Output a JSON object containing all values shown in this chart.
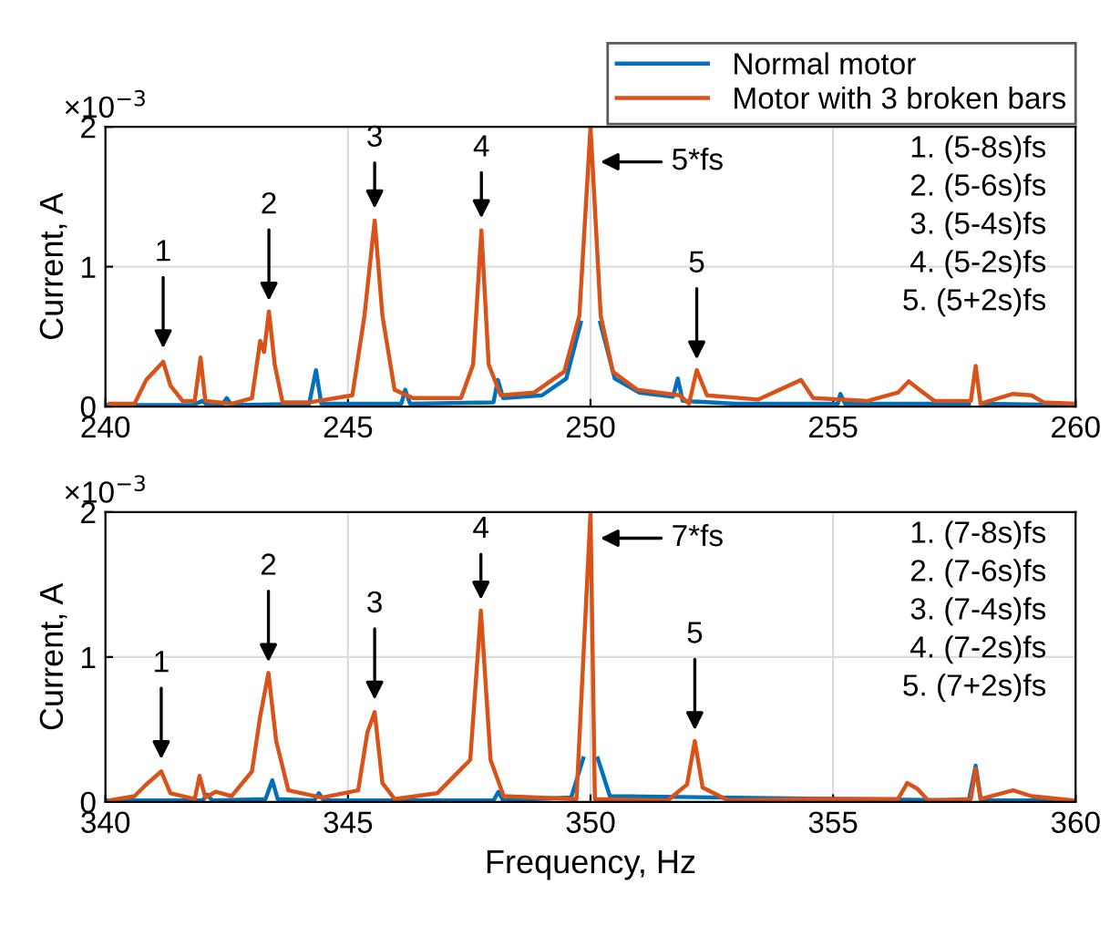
{
  "chart_data": [
    {
      "type": "line",
      "ylabel": "Current, A",
      "xlim": [
        240,
        260
      ],
      "xticks": [
        240,
        245,
        250,
        255,
        260
      ],
      "ylim": [
        0,
        2
      ],
      "yticks": [
        0,
        1,
        2
      ],
      "grid": true,
      "legend": "top right",
      "line_style": "solid",
      "series": [
        {
          "name": "Normal motor",
          "color": "#0072bd",
          "x": [
            240.0,
            241.8,
            242.0,
            242.1,
            242.4,
            242.5,
            242.6,
            244.2,
            244.34,
            244.45,
            246.1,
            246.18,
            246.28,
            248.0,
            248.09,
            248.2,
            249.0,
            249.5,
            249.8,
            250.0,
            250.2,
            250.5,
            251.0,
            251.7,
            251.8,
            251.9,
            253.0,
            255.1,
            255.15,
            255.25,
            257.8,
            257.94,
            258.05,
            260.0
          ],
          "values": [
            0.01,
            0.01,
            0.04,
            0.01,
            0.01,
            0.06,
            0.01,
            0.02,
            0.26,
            0.02,
            0.02,
            0.12,
            0.02,
            0.03,
            0.19,
            0.06,
            0.08,
            0.2,
            0.6,
            null,
            0.6,
            0.2,
            0.1,
            0.07,
            0.2,
            0.04,
            0.02,
            0.02,
            0.09,
            0.02,
            0.02,
            null,
            0.02,
            0.01
          ]
        },
        {
          "name": "Motor with 3 broken bars",
          "color": "#d95319",
          "x": [
            240.09,
            240.6,
            240.84,
            241.19,
            241.34,
            241.59,
            241.84,
            241.96,
            242.06,
            242.6,
            243.02,
            243.19,
            243.27,
            243.37,
            243.49,
            243.65,
            244.21,
            245.09,
            245.34,
            245.55,
            245.71,
            245.96,
            246.34,
            247.33,
            247.58,
            247.75,
            247.9,
            248.15,
            248.84,
            249.46,
            249.77,
            250.0,
            250.21,
            250.46,
            250.96,
            251.84,
            252.03,
            252.19,
            252.4,
            253.46,
            254.34,
            254.59,
            255.71,
            256.34,
            256.56,
            256.78,
            257.09,
            257.84,
            257.94,
            258.04,
            258.71,
            259.09,
            259.34,
            259.96
          ],
          "values": [
            0.02,
            0.02,
            0.19,
            0.32,
            0.15,
            0.04,
            0.04,
            0.35,
            0.04,
            0.02,
            0.06,
            0.47,
            0.39,
            0.68,
            0.3,
            0.03,
            0.03,
            0.08,
            0.65,
            1.33,
            0.65,
            0.12,
            0.06,
            0.06,
            0.3,
            1.26,
            0.3,
            0.08,
            0.1,
            0.25,
            0.65,
            2,
            0.65,
            0.25,
            0.12,
            0.08,
            0.02,
            0.26,
            0.08,
            0.05,
            0.19,
            0.06,
            0.04,
            0.1,
            0.18,
            0.12,
            0.04,
            0.04,
            0.29,
            0.02,
            0.09,
            0.08,
            0.03,
            0.02
          ]
        }
      ],
      "annotations": [
        "×10$^{−3}$",
        "1. (5-8s)fs\n2. (5-6s)fs\n3. (5-4s)fs\n4. (5-2s)fs\n5. (5+2s)fs",
        {
          "text": "1",
          "x": 241.19,
          "y": 0.38
        },
        {
          "text": "2",
          "x": 243.37,
          "y": 0.72
        },
        {
          "text": "3",
          "x": 245.55,
          "y": 1.38
        },
        {
          "text": "4",
          "x": 247.75,
          "y": 1.31
        },
        {
          "text": "5",
          "x": 252.19,
          "y": 0.3
        },
        {
          "text": "5*fs",
          "x": 250.1,
          "y": 1.75
        }
      ]
    },
    {
      "type": "line",
      "xlabel": "Frequency, Hz",
      "ylabel": "Current, A",
      "xlim": [
        340,
        360
      ],
      "xticks": [
        340,
        345,
        350,
        355,
        360
      ],
      "ylim": [
        0,
        2
      ],
      "yticks": [
        0,
        1,
        2
      ],
      "grid": true,
      "line_style": "solid",
      "series": [
        {
          "color": "#0072bd",
          "x": [
            340.0,
            342.0,
            342.1,
            342.2,
            343.3,
            343.44,
            343.55,
            344.3,
            344.4,
            344.5,
            348.0,
            348.1,
            348.2,
            349.6,
            349.85,
            350.0,
            350.15,
            350.4,
            357.8,
            357.94,
            358.05,
            360.0
          ],
          "values": [
            0.01,
            0.01,
            0.05,
            0.01,
            0.02,
            0.15,
            0.02,
            0.01,
            0.06,
            0.01,
            0.01,
            0.07,
            0.01,
            0.03,
            0.3,
            null,
            0.3,
            0.04,
            0.01,
            0.25,
            0.01,
            0.01
          ]
        },
        {
          "color": "#d95319",
          "x": [
            340.09,
            340.6,
            340.84,
            341.15,
            341.34,
            341.84,
            341.94,
            342.06,
            342.27,
            342.6,
            343.02,
            343.19,
            343.36,
            343.52,
            343.77,
            344.46,
            345.21,
            345.4,
            345.55,
            345.71,
            345.96,
            346.84,
            347.52,
            347.74,
            347.94,
            348.21,
            349.71,
            350.0,
            350.09,
            351.59,
            351.99,
            352.15,
            352.31,
            352.84,
            354.46,
            356.34,
            356.53,
            356.74,
            356.96,
            357.84,
            357.94,
            358.04,
            358.71,
            359.09,
            359.96
          ],
          "values": [
            0.01,
            0.04,
            0.12,
            0.21,
            0.06,
            0.02,
            0.18,
            0.03,
            0.07,
            0.04,
            0.21,
            0.59,
            0.89,
            0.42,
            0.08,
            0.03,
            0.08,
            0.48,
            0.62,
            0.13,
            0.02,
            0.06,
            0.29,
            1.32,
            0.29,
            0.04,
            0.02,
            2,
            0.02,
            0.01,
            0.12,
            0.42,
            0.1,
            0.01,
            0.02,
            0.02,
            0.13,
            0.09,
            0.01,
            0.02,
            0.23,
            0.02,
            0.08,
            0.04,
            0.01
          ]
        }
      ],
      "annotations": [
        "×10$^{−3}$",
        "1. (7-8s)fs\n2. (7-6s)fs\n3. (7-4s)fs\n4. (7-2s)fs\n5. (7+2s)fs",
        {
          "text": "1",
          "x": 341.15,
          "y": 0.26
        },
        {
          "text": "2",
          "x": 343.36,
          "y": 0.93
        },
        {
          "text": "3",
          "x": 345.55,
          "y": 0.67
        },
        {
          "text": "4",
          "x": 347.74,
          "y": 1.36
        },
        {
          "text": "5",
          "x": 352.15,
          "y": 0.46
        },
        {
          "text": "7*fs",
          "x": 350.1,
          "y": 1.82
        }
      ]
    }
  ]
}
